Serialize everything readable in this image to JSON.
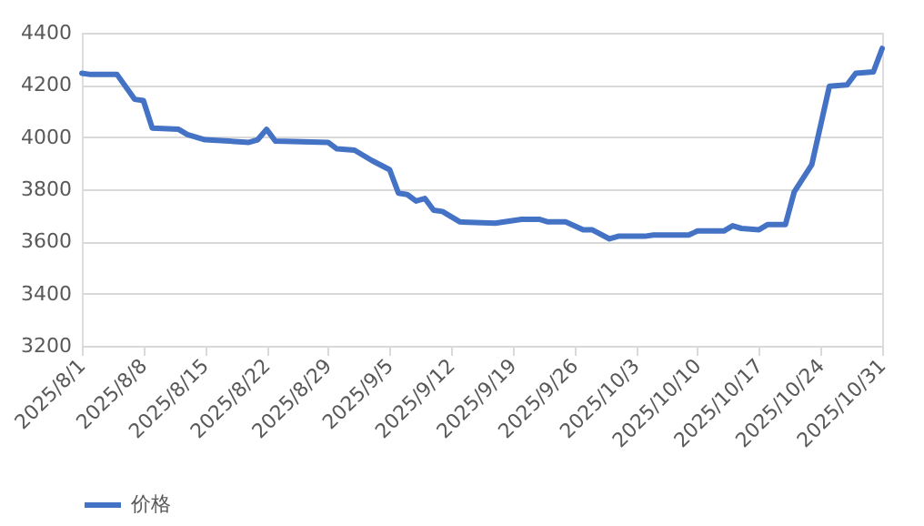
{
  "chart_data": {
    "type": "line",
    "legend": "bottom",
    "grid": "y",
    "marker": "none",
    "line_style": "solid",
    "x": [
      "2025-08-01",
      "2025-08-02",
      "2025-08-05",
      "2025-08-07",
      "2025-08-08",
      "2025-08-09",
      "2025-08-12",
      "2025-08-13",
      "2025-08-15",
      "2025-08-20",
      "2025-08-21",
      "2025-08-22",
      "2025-08-23",
      "2025-08-29",
      "2025-08-30",
      "2025-09-01",
      "2025-09-03",
      "2025-09-05",
      "2025-09-06",
      "2025-09-07",
      "2025-09-08",
      "2025-09-09",
      "2025-09-10",
      "2025-09-11",
      "2025-09-13",
      "2025-09-17",
      "2025-09-20",
      "2025-09-22",
      "2025-09-23",
      "2025-09-25",
      "2025-09-27",
      "2025-09-28",
      "2025-09-30",
      "2025-10-01",
      "2025-10-04",
      "2025-10-05",
      "2025-10-09",
      "2025-10-10",
      "2025-10-13",
      "2025-10-14",
      "2025-10-15",
      "2025-10-17",
      "2025-10-18",
      "2025-10-20",
      "2025-10-21",
      "2025-10-23",
      "2025-10-25",
      "2025-10-27",
      "2025-10-28",
      "2025-10-30",
      "2025-10-31"
    ],
    "series": [
      {
        "name": "价格",
        "color": "#4472c4",
        "values": [
          4245,
          4240,
          4240,
          4145,
          4140,
          4035,
          4030,
          4010,
          3990,
          3980,
          3990,
          4030,
          3985,
          3980,
          3955,
          3950,
          3910,
          3875,
          3785,
          3780,
          3755,
          3765,
          3720,
          3715,
          3675,
          3670,
          3685,
          3685,
          3675,
          3675,
          3645,
          3645,
          3610,
          3620,
          3620,
          3625,
          3625,
          3640,
          3640,
          3660,
          3650,
          3645,
          3665,
          3665,
          3790,
          3895,
          4195,
          4200,
          4245,
          4250,
          4340
        ]
      }
    ],
    "ylim": [
      3200,
      4400
    ],
    "yticks": [
      3200,
      3400,
      3600,
      3800,
      4000,
      4200,
      4400
    ],
    "xlim": [
      "2025-08-01",
      "2025-10-31"
    ],
    "xticks": [
      {
        "value": "2025-08-01",
        "label": "2025/8/1"
      },
      {
        "value": "2025-08-08",
        "label": "2025/8/8"
      },
      {
        "value": "2025-08-15",
        "label": "2025/8/15"
      },
      {
        "value": "2025-08-22",
        "label": "2025/8/22"
      },
      {
        "value": "2025-08-29",
        "label": "2025/8/29"
      },
      {
        "value": "2025-09-05",
        "label": "2025/9/5"
      },
      {
        "value": "2025-09-12",
        "label": "2025/9/12"
      },
      {
        "value": "2025-09-19",
        "label": "2025/9/19"
      },
      {
        "value": "2025-09-26",
        "label": "2025/9/26"
      },
      {
        "value": "2025-10-03",
        "label": "2025/10/3"
      },
      {
        "value": "2025-10-10",
        "label": "2025/10/10"
      },
      {
        "value": "2025-10-17",
        "label": "2025/10/17"
      },
      {
        "value": "2025-10-24",
        "label": "2025/10/24"
      },
      {
        "value": "2025-10-31",
        "label": "2025/10/31"
      }
    ]
  }
}
